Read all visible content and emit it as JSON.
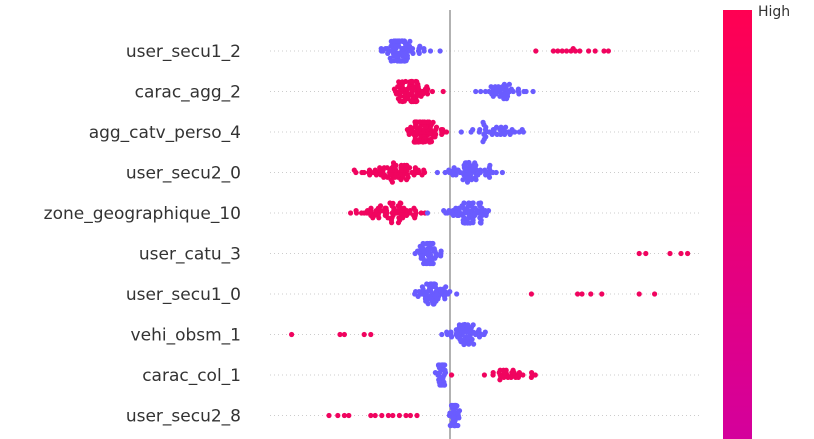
{
  "chart_data": {
    "type": "scatter",
    "subtype": "shap-beeswarm",
    "title": "",
    "xlabel": "",
    "ylabel": "",
    "grid": true,
    "colorbar": {
      "top_label": "High",
      "colors": [
        "#ff0052",
        "#d4009c"
      ]
    },
    "colors": {
      "low": "#6a5cff",
      "high": "#f0045f",
      "zero_line": "#999999",
      "grid": "#cccccc"
    },
    "xlim": [
      -0.75,
      1.15
    ],
    "features": [
      {
        "name": "user_secu1_2",
        "clusters": [
          {
            "color": "high",
            "values": [
              0.39,
              0.47,
              0.49,
              0.51,
              0.53,
              0.55,
              0.56,
              0.57,
              0.59,
              0.63,
              0.66,
              0.7,
              0.72
            ]
          },
          {
            "color": "low",
            "center": -0.22,
            "spread": 0.09,
            "count": 80
          }
        ]
      },
      {
        "name": "carac_agg_2",
        "clusters": [
          {
            "color": "high",
            "center": -0.18,
            "spread": 0.09,
            "count": 75
          },
          {
            "color": "low",
            "center": 0.23,
            "spread": 0.12,
            "count": 40
          }
        ]
      },
      {
        "name": "agg_catv_perso_4",
        "clusters": [
          {
            "color": "high",
            "center": -0.12,
            "spread": 0.09,
            "count": 80
          },
          {
            "color": "low",
            "center": 0.22,
            "spread": 0.15,
            "count": 38
          }
        ]
      },
      {
        "name": "user_secu2_0",
        "clusters": [
          {
            "color": "high",
            "center": -0.25,
            "spread": 0.15,
            "count": 70
          },
          {
            "color": "low",
            "center": 0.1,
            "spread": 0.09,
            "count": 60
          }
        ]
      },
      {
        "name": "zone_geographique_10",
        "clusters": [
          {
            "color": "high",
            "center": -0.26,
            "spread": 0.16,
            "count": 70
          },
          {
            "color": "low",
            "center": 0.09,
            "spread": 0.09,
            "count": 70
          }
        ]
      },
      {
        "name": "user_catu_3",
        "clusters": [
          {
            "color": "high",
            "values": [
              0.86,
              0.89,
              1.0,
              1.05,
              1.08
            ]
          },
          {
            "color": "low",
            "center": -0.1,
            "spread": 0.06,
            "count": 60
          }
        ]
      },
      {
        "name": "user_secu1_0",
        "clusters": [
          {
            "color": "high",
            "values": [
              0.37,
              0.58,
              0.6,
              0.64,
              0.69,
              0.86,
              0.93
            ]
          },
          {
            "color": "low",
            "center": -0.08,
            "spread": 0.07,
            "count": 60
          }
        ]
      },
      {
        "name": "vehi_obsm_1",
        "clusters": [
          {
            "color": "high",
            "values": [
              -0.72,
              -0.5,
              -0.48,
              -0.39,
              -0.36
            ]
          },
          {
            "color": "low",
            "center": 0.07,
            "spread": 0.09,
            "count": 55
          }
        ]
      },
      {
        "name": "carac_col_1",
        "clusters": [
          {
            "color": "high",
            "center": 0.27,
            "spread": 0.13,
            "count": 32
          },
          {
            "color": "low",
            "center": -0.04,
            "spread": 0.03,
            "count": 35
          }
        ]
      },
      {
        "name": "user_secu2_8",
        "clusters": [
          {
            "color": "high",
            "values": [
              -0.55,
              -0.51,
              -0.48,
              -0.46,
              -0.36,
              -0.34,
              -0.31,
              -0.28,
              -0.26,
              -0.23,
              -0.2,
              -0.18,
              -0.15
            ]
          },
          {
            "color": "low",
            "center": 0.02,
            "spread": 0.02,
            "count": 45
          }
        ]
      }
    ]
  }
}
